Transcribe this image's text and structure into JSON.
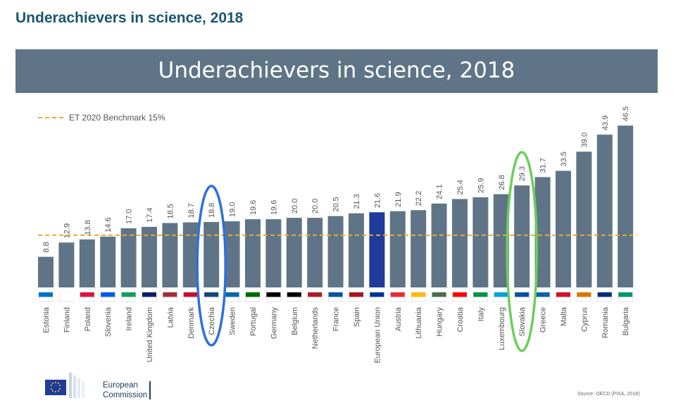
{
  "page_heading": "Underachievers in science, 2018",
  "footer": {
    "logo_line1": "European",
    "logo_line2": "Commission",
    "source": "Source: OECD (PISA, 2018)"
  },
  "colors": {
    "bar": "#5f7587",
    "highlight_bar": "#1f3c9c",
    "benchmark": "#e8a83a",
    "circle_czechia": "#2f6fe0",
    "circle_slovakia": "#6ccf5a"
  },
  "chart_data": {
    "type": "bar",
    "title": "Underachievers in science, 2018",
    "xlabel": "",
    "ylabel": "",
    "ylim": [
      0,
      50
    ],
    "benchmark": {
      "label": "ET 2020 Benchmark 15%",
      "value": 15
    },
    "highlighted_category": "European Union",
    "circled_categories": [
      "Czechia",
      "Slovakia"
    ],
    "categories": [
      "Estonia",
      "Finland",
      "Poland",
      "Slovenia",
      "Ireland",
      "United Kingdom",
      "Latvia",
      "Denmark",
      "Czechia",
      "Sweden",
      "Portugal",
      "Germany",
      "Belgium",
      "Netherlands",
      "France",
      "Spain",
      "European Union",
      "Austria",
      "Lithuania",
      "Hungary",
      "Croatia",
      "Italy",
      "Luxembourg",
      "Slovakia",
      "Greece",
      "Malta",
      "Cyprus",
      "Romania",
      "Bulgaria"
    ],
    "values": [
      8.8,
      12.9,
      13.8,
      14.6,
      17.0,
      17.4,
      18.5,
      18.7,
      18.8,
      19.0,
      19.6,
      19.6,
      20.0,
      20.0,
      20.5,
      21.3,
      21.6,
      21.9,
      22.2,
      24.1,
      25.4,
      25.9,
      26.8,
      29.3,
      31.7,
      33.5,
      39.0,
      43.9,
      46.5
    ],
    "value_labels": [
      "8.8",
      "12.9",
      "13.8",
      "14.6",
      "17.0",
      "17.4",
      "18.5",
      "18.7",
      "18.8",
      "19.0",
      "19.6",
      "19.6",
      "20.0",
      "20.0",
      "20.5",
      "21.3",
      "21.6",
      "21.9",
      "22.2",
      "24.1",
      "25.4",
      "25.9",
      "26.8",
      "29.3",
      "31.7",
      "33.5",
      "39.0",
      "43.9",
      "46.5"
    ]
  }
}
